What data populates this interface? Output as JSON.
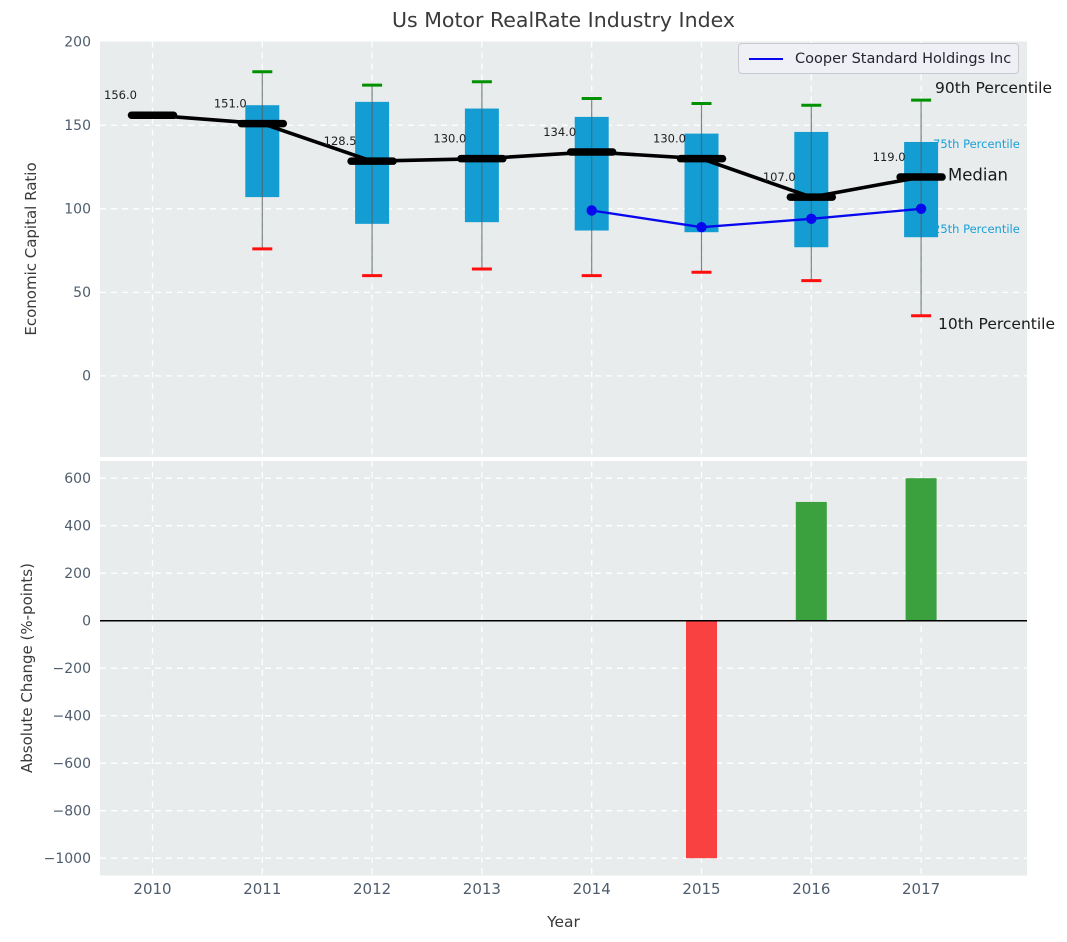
{
  "title": "Us Motor RealRate Industry Index",
  "legend": {
    "label": "Cooper Standard Holdings Inc"
  },
  "annotations": {
    "p90": "90th Percentile",
    "p75": "75th Percentile",
    "median": "Median",
    "p25": "25th Percentile",
    "p10": "10th Percentile"
  },
  "colors": {
    "plot_bg": "#e8eced",
    "grid": "#ffffff",
    "box_fill": "#149dd3",
    "whisker": "#555f63",
    "cap_high": "#009100",
    "cap_low": "#ff0e0e",
    "median": "#000000",
    "series": "#0808ee",
    "bar_positive": "#3aa13e",
    "bar_negative": "#f94141",
    "tick_label": "#4e5d6d",
    "value_label": "#1f1f1f",
    "zero_line": "#000000"
  },
  "chart_data": [
    {
      "type": "box",
      "title": "Us Motor RealRate Industry Index",
      "ylabel": "Economic Capital Ratio",
      "yticks": [
        200,
        150,
        100,
        50,
        0
      ],
      "ylim": [
        -48,
        200
      ],
      "categories": [
        2010,
        2011,
        2012,
        2013,
        2014,
        2015,
        2016,
        2017
      ],
      "grid": true,
      "legend_position": "upper right",
      "boxes": [
        {
          "year": 2010,
          "median": 156.0,
          "label": "156.0",
          "q1": null,
          "q3": null,
          "p10": null,
          "p90": null
        },
        {
          "year": 2011,
          "median": 151.0,
          "label": "151.0",
          "q1": 107,
          "q3": 162,
          "p10": 76,
          "p90": 182
        },
        {
          "year": 2012,
          "median": 128.5,
          "label": "128.5",
          "q1": 91,
          "q3": 164,
          "p10": 60,
          "p90": 174
        },
        {
          "year": 2013,
          "median": 130.0,
          "label": "130.0",
          "q1": 92,
          "q3": 160,
          "p10": 64,
          "p90": 176
        },
        {
          "year": 2014,
          "median": 134.0,
          "label": "134.0",
          "q1": 87,
          "q3": 155,
          "p10": 60,
          "p90": 166
        },
        {
          "year": 2015,
          "median": 130.0,
          "label": "130.0",
          "q1": 86,
          "q3": 145,
          "p10": 62,
          "p90": 163
        },
        {
          "year": 2016,
          "median": 107.0,
          "label": "107.0",
          "q1": 77,
          "q3": 146,
          "p10": 57,
          "p90": 162
        },
        {
          "year": 2017,
          "median": 119.0,
          "label": "119.0",
          "q1": 83,
          "q3": 140,
          "p10": 36,
          "p90": 165
        }
      ],
      "series": [
        {
          "name": "Cooper Standard Holdings Inc",
          "x": [
            2014,
            2015,
            2016,
            2017
          ],
          "y": [
            99,
            89,
            94,
            100
          ]
        }
      ]
    },
    {
      "type": "bar",
      "ylabel": "Absolute Change (%-points)",
      "xlabel": "Year",
      "yticks": [
        600,
        400,
        200,
        0,
        -200,
        -400,
        -600,
        -800,
        -1000
      ],
      "ylim": [
        -1070,
        670
      ],
      "categories": [
        2010,
        2011,
        2012,
        2013,
        2014,
        2015,
        2016,
        2017
      ],
      "grid": true,
      "bars": [
        {
          "year": 2015,
          "value": -1000
        },
        {
          "year": 2016,
          "value": 500
        },
        {
          "year": 2017,
          "value": 600
        }
      ]
    }
  ]
}
